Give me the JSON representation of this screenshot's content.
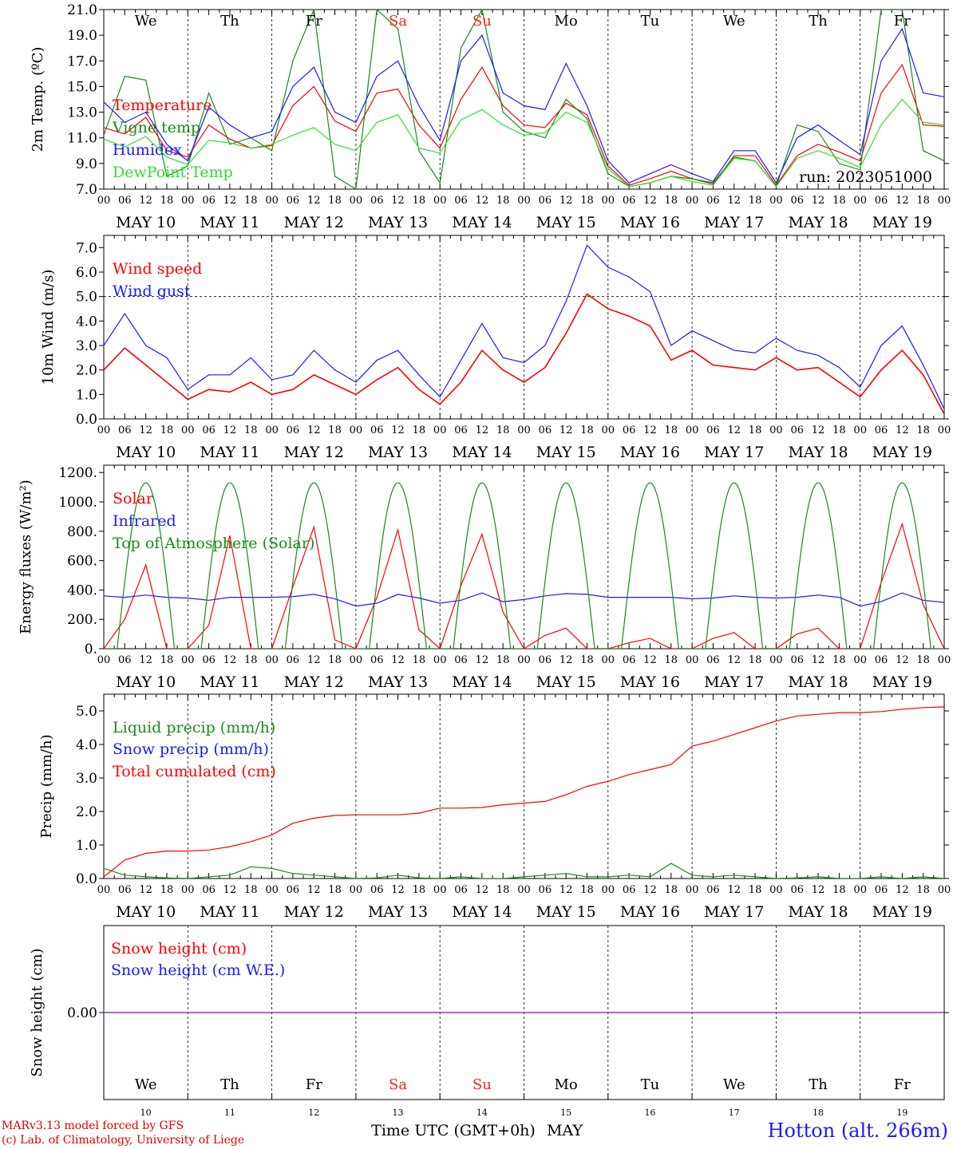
{
  "footer": {
    "credit_line1": "MARv3.13 model forced by GFS",
    "credit_line2": "(c) Lab. of Climatology, University of Liege",
    "station": "Hotton (alt. 266m)",
    "x_axis_title": "Time UTC (GMT+0h)",
    "month": "MAY"
  },
  "colors": {
    "red": "#ff0000",
    "blue": "#1a1aff",
    "dark_green": "#1a8a1a",
    "light_green": "#33dd33",
    "purple": "#8833aa",
    "weekend": "#ff2020"
  },
  "chart_data": [
    {
      "type": "line",
      "ylabel": "2m Temp. (ºC)",
      "ylim": [
        7.0,
        21.0
      ],
      "yticks": [
        "7.0",
        "9.0",
        "11.0",
        "13.0",
        "15.0",
        "17.0",
        "19.0",
        "21.0"
      ],
      "weekdays": [
        "We",
        "Th",
        "Fr",
        "Sa",
        "Su",
        "Mo",
        "Tu",
        "We",
        "Th",
        "Fr"
      ],
      "date_labels": [
        "MAY 10",
        "MAY 11",
        "MAY 12",
        "MAY 13",
        "MAY 14",
        "MAY 15",
        "MAY 16",
        "MAY 17",
        "MAY 18",
        "MAY 19"
      ],
      "hour_ticks": [
        "00",
        "06",
        "12",
        "18"
      ],
      "run_label": "run: 2023051000",
      "x_day_start": 10,
      "x_hours_step": 6,
      "series": [
        {
          "name": "Temperature",
          "color": "red",
          "values": [
            11.8,
            11.3,
            12.6,
            10.0,
            9.5,
            12.0,
            10.9,
            10.2,
            10.4,
            13.5,
            15.0,
            12.3,
            11.5,
            14.5,
            14.8,
            12.0,
            10.2,
            14.0,
            16.5,
            13.5,
            12.0,
            11.8,
            13.7,
            12.8,
            8.8,
            7.3,
            7.8,
            8.4,
            7.8,
            7.4,
            9.6,
            9.6,
            7.3,
            9.6,
            10.5,
            9.9,
            9.2,
            14.5,
            16.7,
            12.0,
            11.9
          ]
        },
        {
          "name": "Vigne temp",
          "color": "dark_green",
          "values": [
            11.2,
            15.8,
            15.5,
            8.0,
            8.8,
            14.5,
            10.5,
            11.0,
            10.0,
            17.0,
            21.0,
            8.0,
            7.0,
            21.0,
            19.5,
            10.0,
            7.5,
            18.0,
            21.0,
            13.0,
            11.5,
            11.0,
            14.0,
            12.5,
            8.2,
            7.2,
            7.5,
            8.0,
            7.8,
            7.5,
            9.5,
            9.2,
            7.2,
            12.0,
            11.5,
            9.0,
            8.5,
            21.0,
            21.0,
            10.0,
            9.2
          ]
        },
        {
          "name": "Humidex",
          "color": "blue",
          "values": [
            13.8,
            12.2,
            13.0,
            10.5,
            9.2,
            13.4,
            12.0,
            11.0,
            11.5,
            15.0,
            16.5,
            13.0,
            12.2,
            15.8,
            17.0,
            13.5,
            10.8,
            17.0,
            19.0,
            14.5,
            13.5,
            13.2,
            16.8,
            13.5,
            9.2,
            7.5,
            8.2,
            8.9,
            8.2,
            7.6,
            10.0,
            10.0,
            7.5,
            11.0,
            12.0,
            10.8,
            9.7,
            17.0,
            19.5,
            14.5,
            14.2
          ]
        },
        {
          "name": "DewPoint Temp",
          "color": "light_green",
          "values": [
            10.9,
            10.3,
            11.1,
            9.5,
            8.9,
            10.8,
            10.6,
            10.2,
            10.5,
            11.2,
            11.8,
            10.5,
            10.0,
            12.2,
            12.8,
            10.2,
            9.8,
            12.4,
            13.2,
            12.0,
            11.2,
            11.4,
            13.0,
            12.2,
            8.6,
            7.2,
            7.5,
            8.0,
            7.6,
            7.3,
            9.4,
            9.2,
            7.2,
            9.4,
            10.0,
            9.4,
            8.7,
            12.0,
            14.0,
            12.2,
            12.0
          ]
        }
      ]
    },
    {
      "type": "line",
      "ylabel": "10m Wind (m/s)",
      "ylim": [
        0.0,
        7.5
      ],
      "yticks": [
        "0.0",
        "1.0",
        "2.0",
        "3.0",
        "4.0",
        "5.0",
        "6.0",
        "7.0"
      ],
      "reference_line": 5.0,
      "date_labels": [
        "MAY 10",
        "MAY 11",
        "MAY 12",
        "MAY 13",
        "MAY 14",
        "MAY 15",
        "MAY 16",
        "MAY 17",
        "MAY 18",
        "MAY 19"
      ],
      "hour_ticks": [
        "00",
        "06",
        "12",
        "18"
      ],
      "x_day_start": 10,
      "x_hours_step": 6,
      "series": [
        {
          "name": "Wind speed",
          "color": "red",
          "values": [
            2.0,
            2.9,
            2.2,
            1.5,
            0.8,
            1.2,
            1.1,
            1.5,
            1.0,
            1.2,
            1.8,
            1.4,
            1.0,
            1.6,
            2.1,
            1.2,
            0.6,
            1.5,
            2.8,
            2.0,
            1.5,
            2.1,
            3.5,
            5.1,
            4.5,
            4.2,
            3.8,
            2.4,
            2.8,
            2.2,
            2.1,
            2.0,
            2.5,
            2.0,
            2.1,
            1.5,
            0.9,
            2.0,
            2.8,
            1.8,
            0.2
          ]
        },
        {
          "name": "Wind gust",
          "color": "blue",
          "values": [
            3.0,
            4.3,
            3.0,
            2.5,
            1.2,
            1.8,
            1.8,
            2.5,
            1.6,
            1.8,
            2.8,
            2.0,
            1.5,
            2.4,
            2.8,
            1.8,
            0.9,
            2.4,
            3.9,
            2.5,
            2.3,
            3.0,
            4.8,
            7.1,
            6.2,
            5.8,
            5.2,
            3.0,
            3.6,
            3.2,
            2.8,
            2.7,
            3.3,
            2.8,
            2.6,
            2.1,
            1.3,
            3.0,
            3.8,
            2.2,
            0.4
          ]
        }
      ]
    },
    {
      "type": "line",
      "ylabel": "Energy fluxes (W/m²)",
      "ylim": [
        0,
        1250
      ],
      "yticks": [
        "0.",
        "200.",
        "400.",
        "600.",
        "800.",
        "1000.",
        "1200."
      ],
      "date_labels": [
        "MAY 10",
        "MAY 11",
        "MAY 12",
        "MAY 13",
        "MAY 14",
        "MAY 15",
        "MAY 16",
        "MAY 17",
        "MAY 18",
        "MAY 19"
      ],
      "hour_ticks": [
        "00",
        "06",
        "12",
        "18"
      ],
      "x_day_start": 10,
      "x_hours_step": 6,
      "series": [
        {
          "name": "Solar",
          "color": "red",
          "values": [
            0,
            200,
            570,
            0,
            0,
            160,
            770,
            0,
            0,
            420,
            830,
            60,
            0,
            350,
            810,
            130,
            0,
            430,
            780,
            250,
            0,
            90,
            140,
            0,
            0,
            40,
            70,
            0,
            0,
            70,
            110,
            0,
            0,
            100,
            140,
            0,
            0,
            450,
            850,
            300,
            0
          ]
        },
        {
          "name": "Infrared",
          "color": "blue",
          "values": [
            360,
            350,
            365,
            350,
            345,
            330,
            350,
            350,
            350,
            355,
            370,
            340,
            290,
            310,
            370,
            345,
            310,
            330,
            380,
            320,
            335,
            360,
            375,
            370,
            350,
            350,
            350,
            350,
            340,
            345,
            360,
            350,
            345,
            350,
            365,
            350,
            290,
            320,
            380,
            330,
            315
          ]
        },
        {
          "name": "Top of Atmosphere (Solar)",
          "color": "dark_green",
          "peak": 1130
        }
      ]
    },
    {
      "type": "line",
      "ylabel": "Precip (mm/h)",
      "ylim": [
        0.0,
        5.5
      ],
      "yticks": [
        "0.0",
        "1.0",
        "2.0",
        "3.0",
        "4.0",
        "5.0"
      ],
      "date_labels": [
        "MAY 10",
        "MAY 11",
        "MAY 12",
        "MAY 13",
        "MAY 14",
        "MAY 15",
        "MAY 16",
        "MAY 17",
        "MAY 18",
        "MAY 19"
      ],
      "hour_ticks": [
        "00",
        "06",
        "12",
        "18"
      ],
      "x_day_start": 10,
      "x_hours_step": 6,
      "series": [
        {
          "name": "Liquid precip (mm/h)",
          "color": "dark_green",
          "values": [
            0.3,
            0.1,
            0.05,
            0.02,
            0.0,
            0.05,
            0.1,
            0.35,
            0.3,
            0.15,
            0.1,
            0.05,
            0.0,
            0.02,
            0.1,
            0.02,
            0.0,
            0.05,
            0.0,
            0.0,
            0.05,
            0.1,
            0.15,
            0.05,
            0.05,
            0.1,
            0.05,
            0.45,
            0.1,
            0.05,
            0.1,
            0.05,
            0.0,
            0.02,
            0.05,
            0.0,
            0.0,
            0.05,
            0.0,
            0.05,
            0.0
          ]
        },
        {
          "name": "Snow precip (mm/h)",
          "color": "blue",
          "values": []
        },
        {
          "name": "Total cumulated (cm)",
          "color": "red",
          "values": [
            0.05,
            0.55,
            0.75,
            0.82,
            0.82,
            0.85,
            0.95,
            1.1,
            1.3,
            1.65,
            1.8,
            1.88,
            1.9,
            1.9,
            1.9,
            1.95,
            2.1,
            2.1,
            2.12,
            2.2,
            2.25,
            2.3,
            2.5,
            2.75,
            2.9,
            3.1,
            3.25,
            3.4,
            3.95,
            4.1,
            4.3,
            4.5,
            4.7,
            4.85,
            4.9,
            4.95,
            4.95,
            4.98,
            5.05,
            5.1,
            5.12
          ]
        }
      ]
    },
    {
      "type": "line",
      "ylabel": "Snow height (cm)",
      "yticks": [
        "0.00"
      ],
      "weekdays": [
        "We",
        "Th",
        "Fr",
        "Sa",
        "Su",
        "Mo",
        "Tu",
        "We",
        "Th",
        "Fr"
      ],
      "day_numbers": [
        "10",
        "11",
        "12",
        "13",
        "14",
        "15",
        "16",
        "17",
        "18",
        "19"
      ],
      "series": [
        {
          "name": "Snow height (cm)",
          "color": "red",
          "values": [
            0,
            0
          ]
        },
        {
          "name": "Snow height (cm W.E.)",
          "color": "blue",
          "values": [
            0,
            0
          ]
        }
      ]
    }
  ]
}
